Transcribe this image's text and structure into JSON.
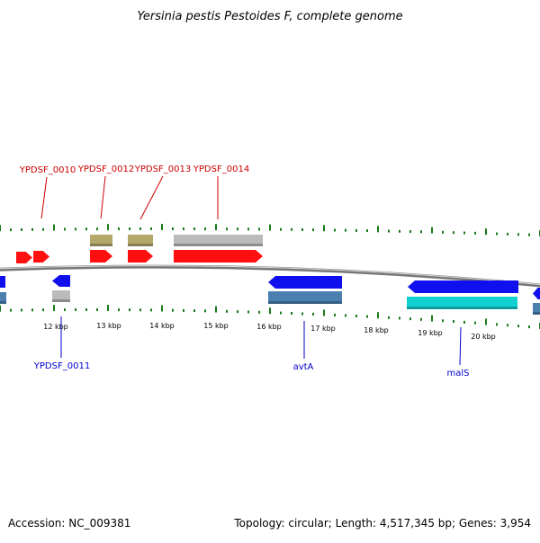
{
  "title": "Yersinia pestis Pestoides F, complete genome",
  "footer": {
    "accession": "Accession: NC_009381",
    "summary": "Topology: circular; Length: 4,517,345 bp; Genes: 3,954"
  },
  "colors": {
    "forward_label": "#cc0000",
    "reverse_label": "#0000cc",
    "tick": "#1a7a1a",
    "backbone": "#777777",
    "red_gene": "#ff1010",
    "blue_gene": "#1010ee",
    "steel_gene": "#4a7fb0",
    "cyan_gene": "#10d0d0",
    "olive_gene": "#b2a86a",
    "gray_gene": "#bbbbbb"
  },
  "tick_labels": [
    "12 kbp",
    "13 kbp",
    "14 kbp",
    "15 kbp",
    "16 kbp",
    "17 kbp",
    "18 kbp",
    "19 kbp",
    "20 kbp"
  ],
  "forward_gene_labels": [
    "YPDSF_0010",
    "YPDSF_0012",
    "YPDSF_0013",
    "YPDSF_0014"
  ],
  "reverse_gene_labels": [
    "YPDSF_0011",
    "avtA",
    "malS"
  ]
}
